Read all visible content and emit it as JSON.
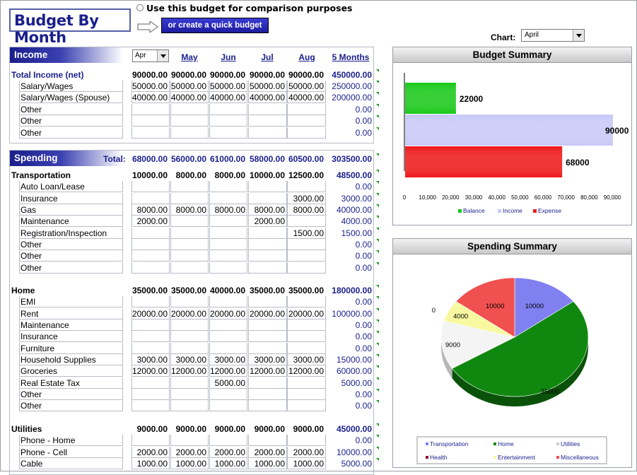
{
  "title": "Budget By Month",
  "compare_label": "Use this budget for comparison purposes",
  "quick_budget_label": "or create a quick budget",
  "chart_select": {
    "label": "Chart:",
    "value": "April"
  },
  "month_select": "Apr",
  "months": [
    "May",
    "Jun",
    "Jul",
    "Aug",
    "5 Months"
  ],
  "income": {
    "header": "Income",
    "total": {
      "label": "Total Income (net)",
      "values": [
        "90000.00",
        "90000.00",
        "90000.00",
        "90000.00",
        "90000.00",
        "450000.00"
      ]
    },
    "items": [
      {
        "label": "Salary/Wages",
        "values": [
          "50000.00",
          "50000.00",
          "50000.00",
          "50000.00",
          "50000.00",
          "250000.00"
        ]
      },
      {
        "label": "Salary/Wages (Spouse)",
        "values": [
          "40000.00",
          "40000.00",
          "40000.00",
          "40000.00",
          "40000.00",
          "200000.00"
        ]
      },
      {
        "label": "Other",
        "values": [
          "",
          "",
          "",
          "",
          "",
          "0.00"
        ]
      },
      {
        "label": "Other",
        "values": [
          "",
          "",
          "",
          "",
          "",
          "0.00"
        ]
      },
      {
        "label": "Other",
        "values": [
          "",
          "",
          "",
          "",
          "",
          "0.00"
        ]
      }
    ]
  },
  "spending": {
    "header": "Spending",
    "total_label": "Total:",
    "totals": [
      "68000.00",
      "56000.00",
      "61000.00",
      "58000.00",
      "60500.00",
      "303500.00"
    ],
    "groups": [
      {
        "name": "Transportation",
        "values": [
          "10000.00",
          "8000.00",
          "8000.00",
          "10000.00",
          "12500.00",
          "48500.00"
        ],
        "items": [
          {
            "label": "Auto Loan/Lease",
            "values": [
              "",
              "",
              "",
              "",
              "",
              "0.00"
            ]
          },
          {
            "label": "Insurance",
            "values": [
              "",
              "",
              "",
              "",
              "3000.00",
              "3000.00"
            ]
          },
          {
            "label": "Gas",
            "values": [
              "8000.00",
              "8000.00",
              "8000.00",
              "8000.00",
              "8000.00",
              "40000.00"
            ]
          },
          {
            "label": "Maintenance",
            "values": [
              "2000.00",
              "",
              "",
              "2000.00",
              "",
              "4000.00"
            ]
          },
          {
            "label": "Registration/Inspection",
            "values": [
              "",
              "",
              "",
              "",
              "1500.00",
              "1500.00"
            ]
          },
          {
            "label": "Other",
            "values": [
              "",
              "",
              "",
              "",
              "",
              "0.00"
            ]
          },
          {
            "label": "Other",
            "values": [
              "",
              "",
              "",
              "",
              "",
              "0.00"
            ]
          },
          {
            "label": "Other",
            "values": [
              "",
              "",
              "",
              "",
              "",
              "0.00"
            ]
          }
        ]
      },
      {
        "name": "Home",
        "values": [
          "35000.00",
          "35000.00",
          "40000.00",
          "35000.00",
          "35000.00",
          "180000.00"
        ],
        "items": [
          {
            "label": "EMI",
            "values": [
              "",
              "",
              "",
              "",
              "",
              "0.00"
            ]
          },
          {
            "label": "Rent",
            "values": [
              "20000.00",
              "20000.00",
              "20000.00",
              "20000.00",
              "20000.00",
              "100000.00"
            ]
          },
          {
            "label": "Maintenance",
            "values": [
              "",
              "",
              "",
              "",
              "",
              "0.00"
            ]
          },
          {
            "label": "Insurance",
            "values": [
              "",
              "",
              "",
              "",
              "",
              "0.00"
            ]
          },
          {
            "label": "Furniture",
            "values": [
              "",
              "",
              "",
              "",
              "",
              "0.00"
            ]
          },
          {
            "label": "Household Supplies",
            "values": [
              "3000.00",
              "3000.00",
              "3000.00",
              "3000.00",
              "3000.00",
              "15000.00"
            ]
          },
          {
            "label": "Groceries",
            "values": [
              "12000.00",
              "12000.00",
              "12000.00",
              "12000.00",
              "12000.00",
              "60000.00"
            ]
          },
          {
            "label": "Real Estate Tax",
            "values": [
              "",
              "",
              "5000.00",
              "",
              "",
              "5000.00"
            ]
          },
          {
            "label": "Other",
            "values": [
              "",
              "",
              "",
              "",
              "",
              "0.00"
            ]
          },
          {
            "label": "Other",
            "values": [
              "",
              "",
              "",
              "",
              "",
              "0.00"
            ]
          }
        ]
      },
      {
        "name": "Utilities",
        "values": [
          "9000.00",
          "9000.00",
          "9000.00",
          "9000.00",
          "9000.00",
          "45000.00"
        ],
        "items": [
          {
            "label": "Phone - Home",
            "values": [
              "",
              "",
              "",
              "",
              "",
              "0.00"
            ]
          },
          {
            "label": "Phone - Cell",
            "values": [
              "2000.00",
              "2000.00",
              "2000.00",
              "2000.00",
              "2000.00",
              "10000.00"
            ]
          },
          {
            "label": "Cable",
            "values": [
              "1000.00",
              "1000.00",
              "1000.00",
              "1000.00",
              "1000.00",
              "5000.00"
            ]
          }
        ]
      }
    ]
  },
  "chart_data": [
    {
      "type": "bar",
      "orientation": "horizontal",
      "title": "Budget Summary",
      "categories": [
        "Balance",
        "Income",
        "Expense"
      ],
      "values": [
        22000,
        90000,
        68000
      ],
      "colors": [
        "#18c818",
        "#c8c8f8",
        "#ee1818"
      ],
      "xlim": [
        0,
        90000
      ],
      "xticks": [
        "0",
        "10,000",
        "20,000",
        "30,000",
        "40,000",
        "50,000",
        "60,000",
        "70,000",
        "80,000",
        "90,000"
      ],
      "legend": "bottom"
    },
    {
      "type": "pie",
      "title": "Spending Summary",
      "categories": [
        "Transportation",
        "Home",
        "Utilities",
        "Health",
        "Entertainment",
        "Miscellaneous"
      ],
      "values": [
        10000,
        35000,
        9000,
        0,
        4000,
        10000
      ],
      "colors": [
        "#8080f0",
        "#108810",
        "#f4f4f4",
        "#881040",
        "#f8f8a0",
        "#f05050"
      ],
      "legend": "bottom"
    }
  ]
}
